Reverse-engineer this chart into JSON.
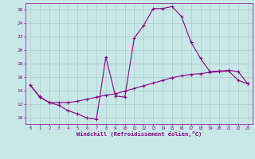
{
  "xlabel": "Windchill (Refroidissement éolien,°C)",
  "background_color": "#c8e8e8",
  "grid_color": "#b0c8c8",
  "line_color": "#880088",
  "x_ticks": [
    0,
    1,
    2,
    3,
    4,
    5,
    6,
    7,
    8,
    9,
    10,
    11,
    12,
    13,
    14,
    15,
    16,
    17,
    18,
    19,
    20,
    21,
    22,
    23
  ],
  "ylim": [
    9.0,
    27.0
  ],
  "xlim": [
    -0.5,
    23.5
  ],
  "yticks": [
    10,
    12,
    14,
    16,
    18,
    20,
    22,
    24,
    26
  ],
  "series1_x": [
    0,
    1,
    2,
    3,
    4,
    5,
    6,
    7,
    8,
    9,
    10,
    11,
    12,
    13,
    14,
    15,
    16,
    17,
    18,
    19,
    20,
    21,
    22,
    23
  ],
  "series1_y": [
    14.8,
    13.0,
    12.2,
    11.8,
    11.0,
    10.5,
    9.9,
    9.7,
    19.0,
    13.2,
    13.0,
    21.8,
    23.7,
    26.2,
    26.2,
    26.5,
    25.0,
    21.2,
    18.8,
    16.8,
    16.9,
    17.0,
    16.8,
    15.0
  ],
  "series2_x": [
    0,
    1,
    2,
    3,
    4,
    5,
    6,
    7,
    8,
    9,
    10,
    11,
    12,
    13,
    14,
    15,
    16,
    17,
    18,
    19,
    20,
    21,
    22,
    23
  ],
  "series2_y": [
    14.8,
    13.1,
    12.2,
    12.2,
    12.2,
    12.4,
    12.7,
    13.0,
    13.3,
    13.5,
    13.9,
    14.3,
    14.7,
    15.1,
    15.5,
    15.9,
    16.2,
    16.4,
    16.5,
    16.7,
    16.8,
    16.9,
    15.5,
    15.0
  ]
}
